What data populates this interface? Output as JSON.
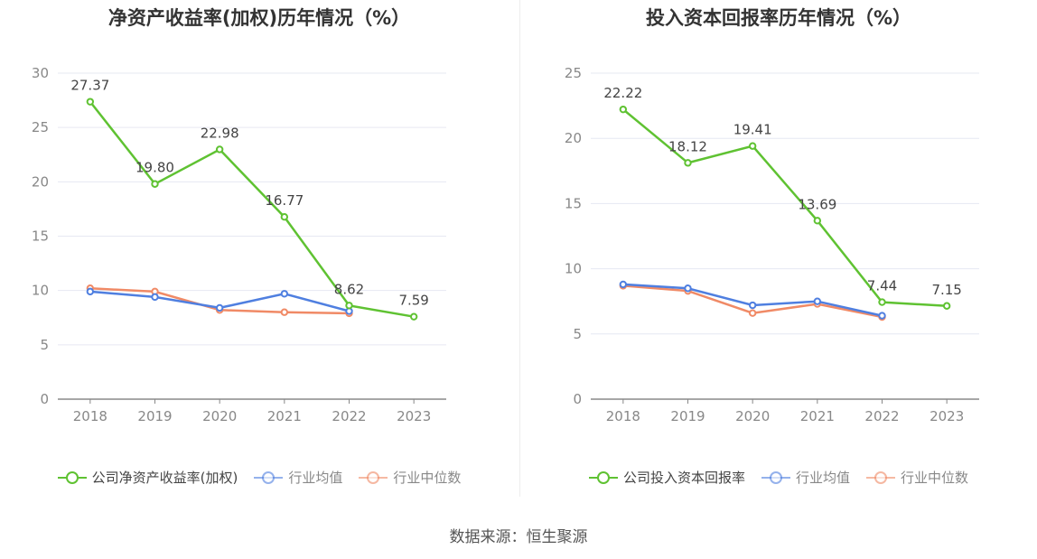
{
  "source": "数据来源：恒生聚源",
  "colors": {
    "company": "#5fc232",
    "avg": "#4f7fe0",
    "median": "#f08a66",
    "grid": "#e6e8f2",
    "axis": "#888888",
    "tick_text": "#888888"
  },
  "chart_data": [
    {
      "type": "line",
      "title": "净资产收益率(加权)历年情况（%）",
      "x": [
        "2018",
        "2019",
        "2020",
        "2021",
        "2022",
        "2023"
      ],
      "ylim": [
        0,
        30
      ],
      "yticks": [
        0,
        5,
        10,
        15,
        20,
        25,
        30
      ],
      "grid": true,
      "legend_position": "bottom",
      "series": [
        {
          "name": "公司净资产收益率(加权)",
          "color_key": "company",
          "values": [
            27.37,
            19.8,
            22.98,
            16.77,
            8.62,
            7.59
          ],
          "labels": [
            "27.37",
            "19.80",
            "22.98",
            "16.77",
            "8.62",
            "7.59"
          ]
        },
        {
          "name": "行业均值",
          "color_key": "avg",
          "values": [
            9.9,
            9.4,
            8.4,
            9.7,
            8.1,
            null
          ]
        },
        {
          "name": "行业中位数",
          "color_key": "median",
          "values": [
            10.2,
            9.9,
            8.2,
            8.0,
            7.9,
            null
          ]
        }
      ]
    },
    {
      "type": "line",
      "title": "投入资本回报率历年情况（%）",
      "x": [
        "2018",
        "2019",
        "2020",
        "2021",
        "2022",
        "2023"
      ],
      "ylim": [
        0,
        25
      ],
      "yticks": [
        0,
        5,
        10,
        15,
        20,
        25
      ],
      "grid": true,
      "legend_position": "bottom",
      "series": [
        {
          "name": "公司投入资本回报率",
          "color_key": "company",
          "values": [
            22.22,
            18.12,
            19.41,
            13.69,
            7.44,
            7.15
          ],
          "labels": [
            "22.22",
            "18.12",
            "19.41",
            "13.69",
            "7.44",
            "7.15"
          ]
        },
        {
          "name": "行业均值",
          "color_key": "avg",
          "values": [
            8.8,
            8.5,
            7.2,
            7.5,
            6.4,
            null
          ]
        },
        {
          "name": "行业中位数",
          "color_key": "median",
          "values": [
            8.7,
            8.3,
            6.6,
            7.3,
            6.3,
            null
          ]
        }
      ]
    }
  ]
}
